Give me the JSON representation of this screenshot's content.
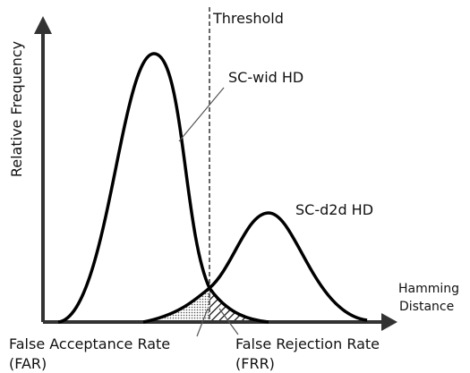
{
  "y_axis_label": "Relative Frequency",
  "x_axis_label": [
    "Hamming",
    "Distance"
  ],
  "threshold_label": "Threshold",
  "curves": [
    {
      "label": "SC-wid HD"
    },
    {
      "label": "SC-d2d HD"
    }
  ],
  "regions": [
    {
      "label": [
        "False Acceptance Rate",
        "(FAR)"
      ]
    },
    {
      "label": [
        "False Rejection Rate",
        "(FRR)"
      ]
    }
  ]
}
